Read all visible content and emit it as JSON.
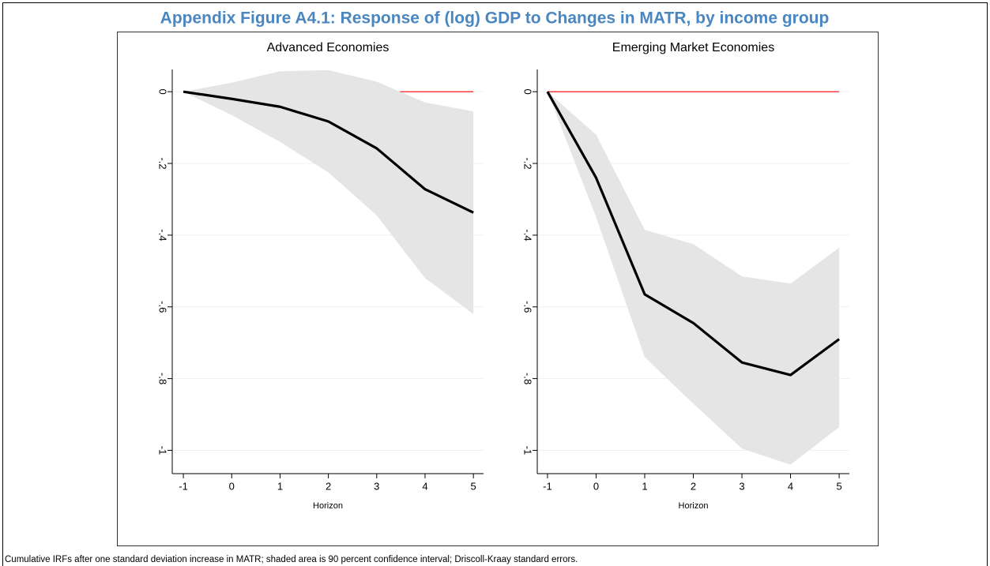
{
  "title": "Appendix Figure A4.1: Response of (log) GDP to Changes in MATR, by income group",
  "caption": "Cumulative IRFs after one standard deviation increase in MATR; shaded area is 90 percent confidence interval; Driscoll-Kraay standard errors.",
  "chart_data": [
    {
      "type": "line",
      "title": "Advanced Economies",
      "x_label": "Horizon",
      "x": [
        -1,
        0,
        1,
        2,
        3,
        4,
        5
      ],
      "series": [
        {
          "color": "#000000",
          "values": [
            0,
            -0.02,
            -0.042,
            -0.083,
            -0.158,
            -0.272,
            -0.337
          ]
        }
      ],
      "band": {
        "color": "#e5e5e5",
        "upper": [
          0,
          0.025,
          0.057,
          0.06,
          0.028,
          -0.03,
          -0.055
        ],
        "lower": [
          0,
          -0.065,
          -0.14,
          -0.225,
          -0.345,
          -0.52,
          -0.62
        ]
      },
      "hline": {
        "value": 0,
        "color": "#ff0000"
      },
      "xlim": [
        -1.23,
        5.21
      ],
      "ylim": [
        -1.065,
        0.062
      ],
      "xticks": [
        -1,
        0,
        1,
        2,
        3,
        4,
        5
      ],
      "yticks": [
        {
          "value": 0,
          "label": "0"
        },
        {
          "value": -0.2,
          "label": "-.2"
        },
        {
          "value": -0.4,
          "label": "-.4"
        },
        {
          "value": -0.6,
          "label": "-.6"
        },
        {
          "value": -0.8,
          "label": "-.8"
        },
        {
          "value": -1,
          "label": "-1"
        }
      ],
      "grid": true
    },
    {
      "type": "line",
      "title": "Emerging Market Economies",
      "x_label": "Horizon",
      "x": [
        -1,
        0,
        1,
        2,
        3,
        4,
        5
      ],
      "series": [
        {
          "color": "#000000",
          "values": [
            0,
            -0.24,
            -0.565,
            -0.645,
            -0.755,
            -0.79,
            -0.69
          ]
        }
      ],
      "band": {
        "color": "#e5e5e5",
        "upper": [
          0,
          -0.12,
          -0.385,
          -0.425,
          -0.515,
          -0.535,
          -0.435
        ],
        "lower": [
          0,
          -0.35,
          -0.74,
          -0.87,
          -0.995,
          -1.04,
          -0.935
        ]
      },
      "hline": {
        "value": 0,
        "color": "#ff0000"
      },
      "xlim": [
        -1.21,
        5.21
      ],
      "ylim": [
        -1.065,
        0.062
      ],
      "xticks": [
        -1,
        0,
        1,
        2,
        3,
        4,
        5
      ],
      "yticks": [
        {
          "value": 0,
          "label": "0"
        },
        {
          "value": -0.2,
          "label": "-.2"
        },
        {
          "value": -0.4,
          "label": "-.4"
        },
        {
          "value": -0.6,
          "label": "-.6"
        },
        {
          "value": -0.8,
          "label": "-.8"
        },
        {
          "value": -1,
          "label": "-1"
        }
      ],
      "grid": true
    }
  ]
}
